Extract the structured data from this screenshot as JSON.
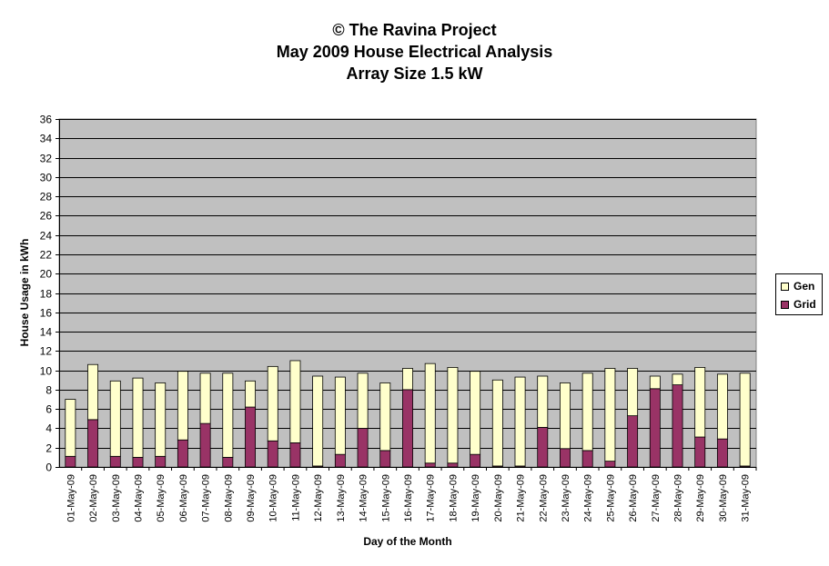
{
  "title_lines": [
    "© The Ravina Project",
    "May 2009 House Electrical Analysis",
    "Array Size 1.5 kW"
  ],
  "legend": [
    {
      "name": "Gen",
      "color": "#ffffcc"
    },
    {
      "name": "Grid",
      "color": "#993366"
    }
  ],
  "chart_data": {
    "type": "bar",
    "stacked": true,
    "xlabel": "Day of the Month",
    "ylabel": "House Usage in kWh",
    "ylim": [
      0,
      36
    ],
    "ytick_step": 2,
    "grid": true,
    "legend_placement": "right",
    "plot_background": "#c0c0c0",
    "categories": [
      "01-May-09",
      "02-May-09",
      "03-May-09",
      "04-May-09",
      "05-May-09",
      "06-May-09",
      "07-May-09",
      "08-May-09",
      "09-May-09",
      "10-May-09",
      "11-May-09",
      "12-May-09",
      "13-May-09",
      "14-May-09",
      "15-May-09",
      "16-May-09",
      "17-May-09",
      "18-May-09",
      "19-May-09",
      "20-May-09",
      "21-May-09",
      "22-May-09",
      "23-May-09",
      "24-May-09",
      "25-May-09",
      "26-May-09",
      "27-May-09",
      "28-May-09",
      "29-May-09",
      "30-May-09",
      "31-May-09"
    ],
    "series": [
      {
        "name": "Grid",
        "color": "#993366",
        "values": [
          1.1,
          4.9,
          1.1,
          1.0,
          1.1,
          2.8,
          4.5,
          1.0,
          6.2,
          2.7,
          2.5,
          0.1,
          1.3,
          4.0,
          1.7,
          8.0,
          0.4,
          0.4,
          1.3,
          0.1,
          0.1,
          4.1,
          1.9,
          1.7,
          0.6,
          5.3,
          8.1,
          8.5,
          3.1,
          2.9,
          0.1
        ]
      },
      {
        "name": "Gen",
        "color": "#ffffcc",
        "values": [
          5.9,
          5.7,
          7.8,
          8.2,
          7.6,
          7.1,
          5.2,
          8.7,
          2.7,
          7.7,
          8.5,
          9.3,
          8.0,
          5.7,
          7.0,
          2.2,
          10.3,
          9.9,
          8.6,
          8.9,
          9.2,
          5.3,
          6.8,
          8.0,
          9.6,
          4.9,
          1.3,
          1.1,
          7.2,
          6.7,
          9.6
        ]
      }
    ]
  }
}
